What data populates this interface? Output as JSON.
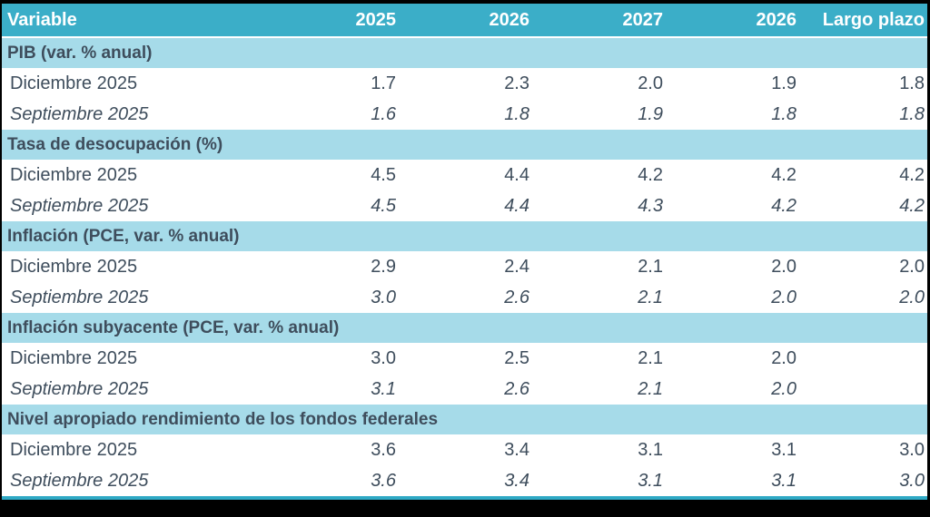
{
  "colors": {
    "frame": "#000000",
    "header_bg": "#3BAEC8",
    "header_text": "#FFFFFF",
    "section_band_bg": "#A6DBE9",
    "text_dark": "#3E4D5C",
    "bottom_border": "#2FA9C5",
    "row_bg": "#FFFFFF"
  },
  "chart_data": {
    "type": "table",
    "title": "",
    "columns": [
      "Variable",
      "2025",
      "2026",
      "2027",
      "2026",
      "Largo plazo"
    ],
    "sections": [
      {
        "title": "PIB (var. % anual)",
        "rows": [
          {
            "label": "Diciembre 2025",
            "style": "regular",
            "values": [
              "1.7",
              "2.3",
              "2.0",
              "1.9",
              "1.8"
            ]
          },
          {
            "label": "Septiembre 2025",
            "style": "italic",
            "values": [
              "1.6",
              "1.8",
              "1.9",
              "1.8",
              "1.8"
            ]
          }
        ]
      },
      {
        "title": "Tasa de desocupación (%)",
        "rows": [
          {
            "label": "Diciembre 2025",
            "style": "regular",
            "values": [
              "4.5",
              "4.4",
              "4.2",
              "4.2",
              "4.2"
            ]
          },
          {
            "label": "Septiembre 2025",
            "style": "italic",
            "values": [
              "4.5",
              "4.4",
              "4.3",
              "4.2",
              "4.2"
            ]
          }
        ]
      },
      {
        "title": "Inflación (PCE, var. % anual)",
        "rows": [
          {
            "label": "Diciembre 2025",
            "style": "regular",
            "values": [
              "2.9",
              "2.4",
              "2.1",
              "2.0",
              "2.0"
            ]
          },
          {
            "label": "Septiembre 2025",
            "style": "italic",
            "values": [
              "3.0",
              "2.6",
              "2.1",
              "2.0",
              "2.0"
            ]
          }
        ]
      },
      {
        "title": "Inflación subyacente (PCE, var. % anual)",
        "rows": [
          {
            "label": "Diciembre 2025",
            "style": "regular",
            "values": [
              "3.0",
              "2.5",
              "2.1",
              "2.0",
              ""
            ]
          },
          {
            "label": "Septiembre 2025",
            "style": "italic",
            "values": [
              "3.1",
              "2.6",
              "2.1",
              "2.0",
              ""
            ]
          }
        ]
      },
      {
        "title": "Nivel apropiado rendimiento de los fondos federales",
        "rows": [
          {
            "label": "Diciembre 2025",
            "style": "regular",
            "values": [
              "3.6",
              "3.4",
              "3.1",
              "3.1",
              "3.0"
            ]
          },
          {
            "label": "Septiembre 2025",
            "style": "italic",
            "values": [
              "3.6",
              "3.4",
              "3.1",
              "3.1",
              "3.0"
            ]
          }
        ]
      }
    ]
  }
}
